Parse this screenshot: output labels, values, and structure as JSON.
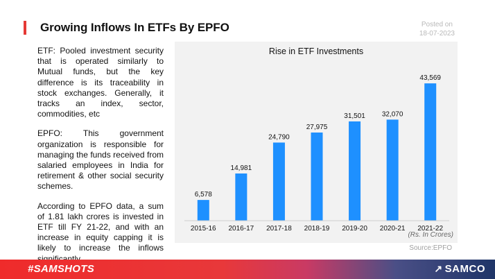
{
  "header": {
    "title": "Growing Inflows In ETFs By EPFO",
    "posted_label": "Posted on",
    "posted_date": "18-07-2023"
  },
  "text": {
    "p1": "ETF: Pooled investment security that is operated similarly to Mutual funds, but the key difference is its traceability in stock exchanges. Generally, it tracks an index, sector, commodities, etc",
    "p2": "EPFO: This government organization is responsible for managing the funds received from salaried employees in India for retirement & other social security schemes.",
    "p3": "According to EPFO data, a sum of 1.81 lakh crores is invested in ETF till FY 21-22, and with an increase in equity capping it is likely to increase the inflows significantly"
  },
  "chart_data": {
    "type": "bar",
    "title": "Rise in ETF Investments",
    "categories": [
      "2015-16",
      "2016-17",
      "2017-18",
      "2018-19",
      "2019-20",
      "2020-21",
      "2021-22"
    ],
    "values": [
      6578,
      14981,
      24790,
      27975,
      31501,
      32070,
      43569
    ],
    "value_labels": [
      "6,578",
      "14,981",
      "24,790",
      "27,975",
      "31,501",
      "32,070",
      "43,569"
    ],
    "unit_note": "(Rs. In Crores)",
    "ylim": [
      0,
      48000
    ],
    "bar_color": "#1e90ff",
    "grid": false,
    "legend": "none"
  },
  "source": "Source:EPFO",
  "footer": {
    "hashtag": "#SAMSHOTS",
    "brand": "SAMCO",
    "brand_icon": "samco-logo-icon",
    "gradient_start": "#ef2b2b",
    "gradient_end": "#1f3568"
  }
}
